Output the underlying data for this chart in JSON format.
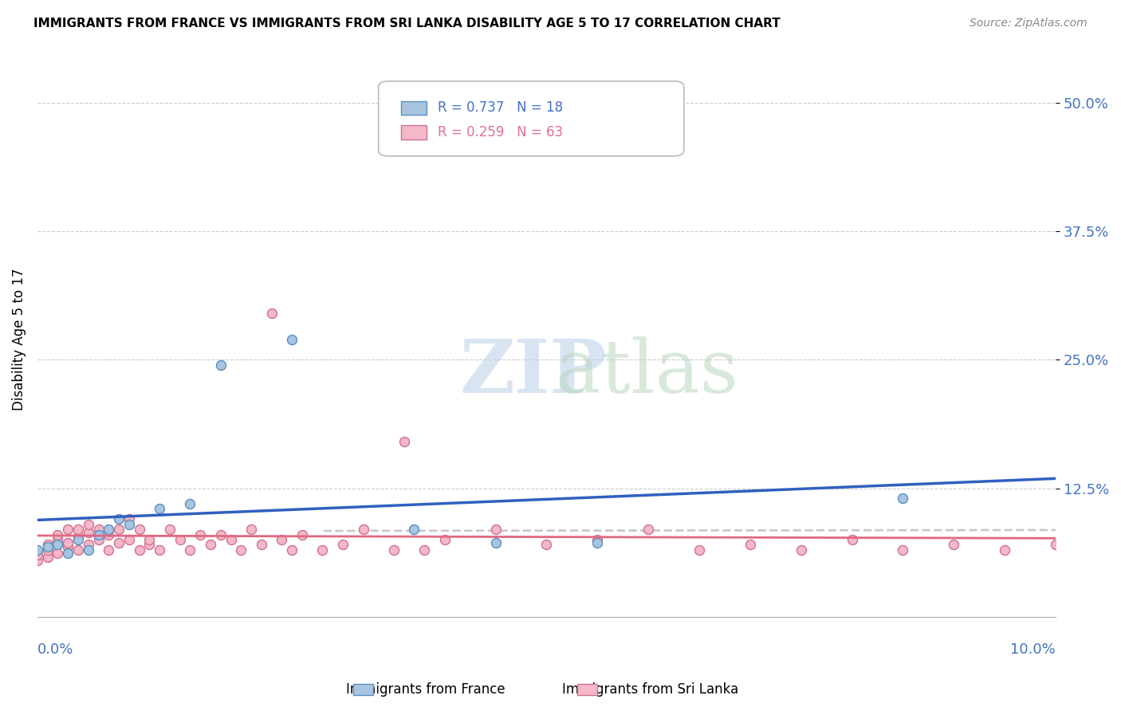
{
  "title": "IMMIGRANTS FROM FRANCE VS IMMIGRANTS FROM SRI LANKA DISABILITY AGE 5 TO 17 CORRELATION CHART",
  "source": "Source: ZipAtlas.com",
  "ylabel": "Disability Age 5 to 17",
  "ytick_labels": [
    "12.5%",
    "25.0%",
    "37.5%",
    "50.0%"
  ],
  "ytick_values": [
    0.125,
    0.25,
    0.375,
    0.5
  ],
  "xlim": [
    0.0,
    0.1
  ],
  "ylim": [
    0.0,
    0.54
  ],
  "legend_r1": "R = 0.737   N = 18",
  "legend_r2": "R = 0.259   N = 63",
  "watermark_zip": "ZIP",
  "watermark_atlas": "atlas",
  "france_color": "#a8c4e0",
  "france_edge": "#5a8fc0",
  "srilanka_color": "#f4b8c8",
  "srilanka_edge": "#d07090",
  "line_france_color": "#3060c0",
  "line_srilanka_color": "#e06880",
  "line_dashed_color": "#c0c0c0",
  "france_points_x": [
    0.0,
    0.001,
    0.002,
    0.003,
    0.004,
    0.005,
    0.006,
    0.007,
    0.008,
    0.009,
    0.012,
    0.015,
    0.018,
    0.025,
    0.037,
    0.045,
    0.055,
    0.085
  ],
  "france_points_y": [
    0.065,
    0.068,
    0.07,
    0.062,
    0.075,
    0.065,
    0.08,
    0.085,
    0.095,
    0.09,
    0.105,
    0.11,
    0.245,
    0.27,
    0.085,
    0.072,
    0.072,
    0.115
  ],
  "srilanka_points_x": [
    0.0,
    0.0,
    0.001,
    0.001,
    0.001,
    0.002,
    0.002,
    0.002,
    0.003,
    0.003,
    0.003,
    0.004,
    0.004,
    0.004,
    0.005,
    0.005,
    0.005,
    0.006,
    0.006,
    0.007,
    0.007,
    0.008,
    0.008,
    0.009,
    0.009,
    0.01,
    0.01,
    0.011,
    0.011,
    0.012,
    0.013,
    0.014,
    0.015,
    0.016,
    0.017,
    0.018,
    0.019,
    0.02,
    0.021,
    0.022,
    0.023,
    0.024,
    0.025,
    0.026,
    0.028,
    0.03,
    0.032,
    0.035,
    0.036,
    0.038,
    0.04,
    0.045,
    0.05,
    0.055,
    0.06,
    0.065,
    0.07,
    0.075,
    0.08,
    0.085,
    0.09,
    0.095,
    0.1
  ],
  "srilanka_points_y": [
    0.055,
    0.06,
    0.058,
    0.065,
    0.07,
    0.062,
    0.075,
    0.08,
    0.068,
    0.072,
    0.085,
    0.065,
    0.078,
    0.085,
    0.07,
    0.082,
    0.09,
    0.075,
    0.085,
    0.065,
    0.08,
    0.072,
    0.085,
    0.075,
    0.095,
    0.065,
    0.085,
    0.07,
    0.075,
    0.065,
    0.085,
    0.075,
    0.065,
    0.08,
    0.07,
    0.08,
    0.075,
    0.065,
    0.085,
    0.07,
    0.295,
    0.075,
    0.065,
    0.08,
    0.065,
    0.07,
    0.085,
    0.065,
    0.17,
    0.065,
    0.075,
    0.085,
    0.07,
    0.075,
    0.085,
    0.065,
    0.07,
    0.065,
    0.075,
    0.065,
    0.07,
    0.065,
    0.07
  ]
}
